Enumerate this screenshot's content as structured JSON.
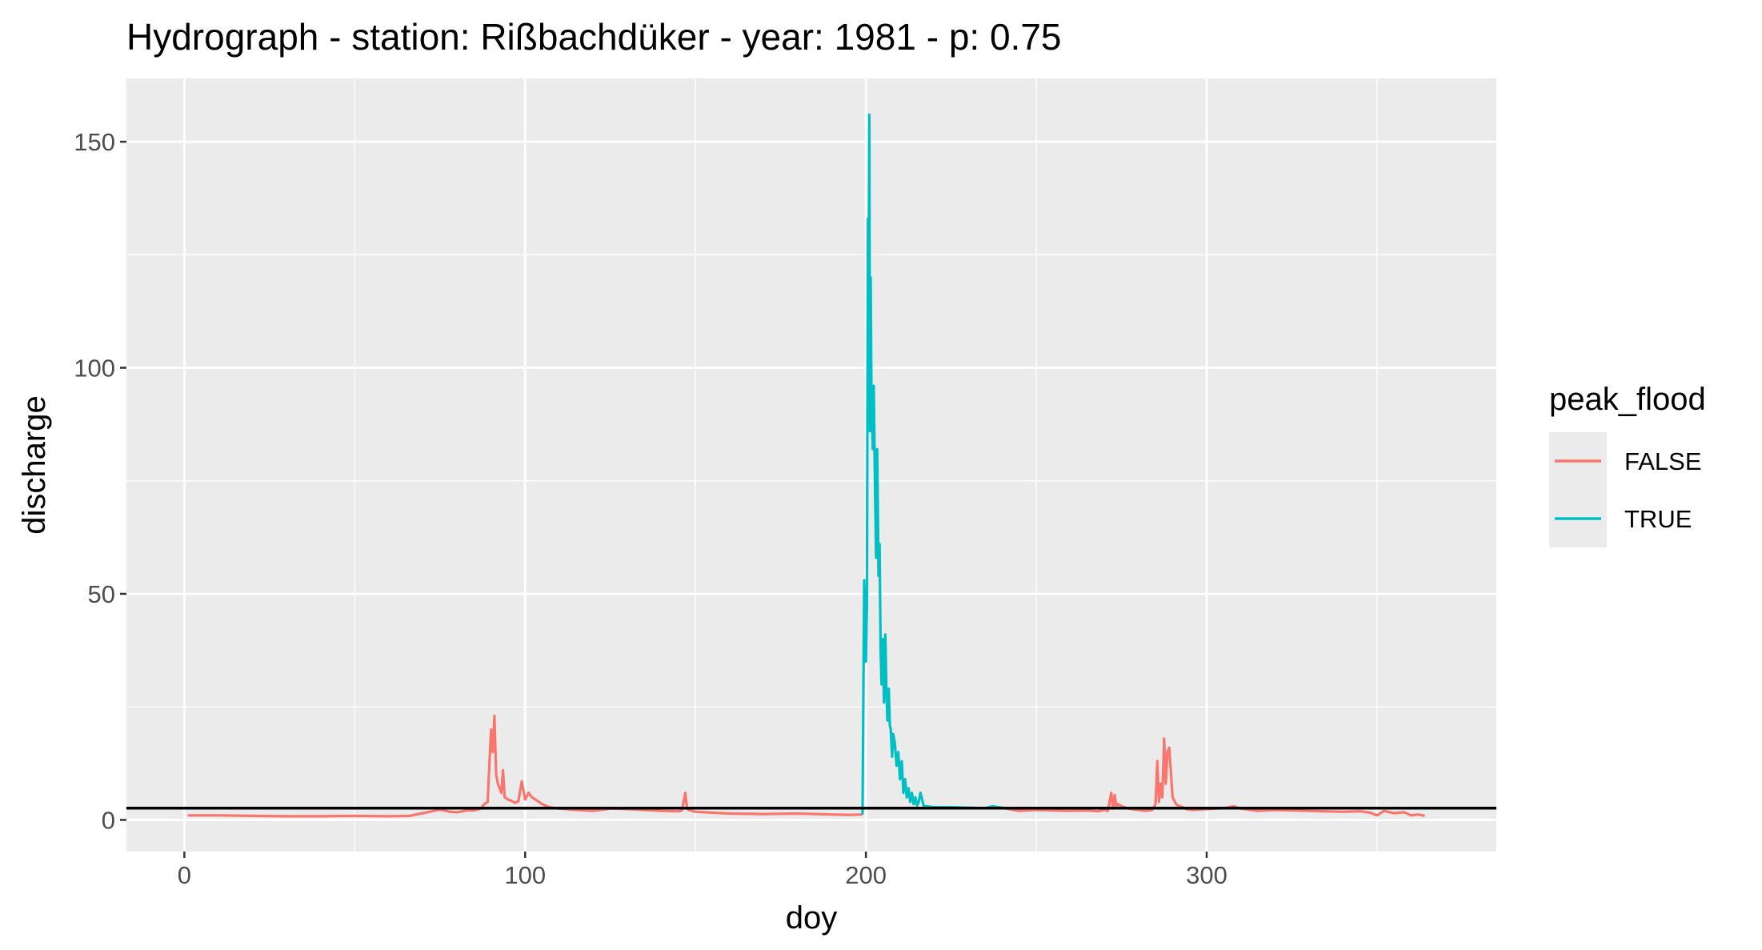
{
  "chart_data": {
    "type": "line",
    "title": "Hydrograph - station: Rißbachdüker - year: 1981 - p: 0.75",
    "xlabel": "doy",
    "ylabel": "discharge",
    "xlim": [
      -17,
      385
    ],
    "ylim": [
      -7,
      164
    ],
    "x_ticks": [
      0,
      100,
      200,
      300
    ],
    "x_tick_labels": [
      "0",
      "100",
      "200",
      "300"
    ],
    "y_ticks": [
      0,
      50,
      100,
      150
    ],
    "y_tick_labels": [
      "0",
      "50",
      "100",
      "150"
    ],
    "grid": true,
    "threshold": 2.6,
    "legend": {
      "title": "peak_flood",
      "position": "right",
      "entries": [
        {
          "label": "FALSE",
          "color": "#F8766D"
        },
        {
          "label": "TRUE",
          "color": "#00BFC4"
        }
      ]
    },
    "colors": {
      "FALSE": "#F8766D",
      "TRUE": "#00BFC4",
      "threshold": "#000000",
      "panel": "#EBEBEB",
      "grid": "#FFFFFF"
    },
    "series": [
      {
        "name": "FALSE",
        "x": [
          1,
          10,
          20,
          30,
          40,
          50,
          60,
          66,
          70,
          72,
          75,
          78,
          80,
          83,
          85,
          87,
          88,
          89,
          90,
          90.5,
          91,
          91.5,
          92,
          93,
          93.5,
          94,
          95,
          96,
          97,
          98,
          99,
          100,
          101,
          102,
          103,
          105,
          107,
          110,
          115,
          120,
          125,
          130,
          135,
          140,
          145,
          146,
          147,
          147.5,
          148,
          150,
          155,
          160,
          170,
          180,
          190,
          195,
          199
        ],
        "y": [
          1.0,
          1.0,
          0.9,
          0.8,
          0.8,
          0.9,
          0.8,
          0.9,
          1.5,
          1.8,
          2.3,
          1.8,
          1.7,
          2.1,
          2.1,
          2.5,
          3.5,
          4.0,
          20,
          15,
          23,
          10,
          8,
          6,
          11,
          5,
          4.5,
          4.2,
          3.8,
          4.1,
          8.5,
          4.5,
          6.0,
          5.0,
          4.5,
          3.5,
          2.8,
          2.5,
          2.2,
          2.0,
          2.5,
          2.4,
          2.2,
          2.0,
          1.9,
          2.1,
          6.0,
          2.5,
          2.2,
          1.8,
          1.6,
          1.4,
          1.3,
          1.4,
          1.2,
          1.1,
          1.2
        ]
      },
      {
        "name": "TRUE",
        "x": [
          199,
          199.5,
          200,
          200.3,
          200.6,
          200.8,
          201,
          201.2,
          201.4,
          201.6,
          201.8,
          202,
          202.3,
          202.6,
          203,
          203.3,
          203.7,
          204,
          204.3,
          204.6,
          205,
          205.3,
          205.7,
          206,
          206.3,
          206.7,
          207,
          207.3,
          207.7,
          208,
          208.5,
          209,
          209.5,
          210,
          210.5,
          211,
          211.5,
          212,
          212.5,
          213,
          213.5,
          214,
          214.5,
          215,
          215.5,
          216,
          217,
          218,
          220,
          225,
          230,
          235,
          237,
          240
        ],
        "y": [
          1.2,
          53,
          35,
          48,
          133,
          110,
          156,
          86,
          120,
          95,
          90,
          82,
          96,
          78,
          58,
          82,
          54,
          61,
          38,
          30,
          40,
          26,
          41,
          29,
          22,
          29,
          21,
          20,
          14,
          19,
          17,
          12,
          15,
          9,
          13,
          6,
          9,
          5,
          7,
          4,
          6,
          3.5,
          5,
          3.2,
          4,
          6,
          3.0,
          3.0,
          2.8,
          2.8,
          2.7,
          2.6,
          3.0,
          2.7
        ]
      },
      {
        "name": "FALSE",
        "x": [
          240,
          242,
          245,
          250,
          255,
          260,
          265,
          268,
          270,
          271,
          272,
          272.5,
          273,
          273.5,
          274,
          275,
          277,
          280,
          282,
          284,
          285,
          285.5,
          286,
          286.5,
          287,
          287.5,
          288,
          288.5,
          289,
          290,
          291,
          292,
          293,
          294,
          296,
          300,
          305,
          308,
          310,
          315,
          320,
          330,
          340,
          345,
          348,
          350,
          352,
          355,
          358,
          360,
          362,
          364
        ],
        "y": [
          2.7,
          2.4,
          2.0,
          2.2,
          2.1,
          2.0,
          2.1,
          1.9,
          2.2,
          2.0,
          6.0,
          2.5,
          5.5,
          3.0,
          3.5,
          3.0,
          2.5,
          2.2,
          2.0,
          2.2,
          3.5,
          13,
          4.0,
          8.0,
          5.0,
          18,
          8.0,
          15,
          16,
          5.0,
          3.5,
          3.0,
          2.8,
          2.4,
          2.2,
          2.4,
          2.6,
          3.0,
          2.5,
          2.0,
          2.2,
          2.0,
          1.8,
          1.9,
          1.6,
          1.0,
          2.0,
          1.5,
          1.7,
          1.0,
          1.2,
          0.9
        ]
      }
    ]
  }
}
